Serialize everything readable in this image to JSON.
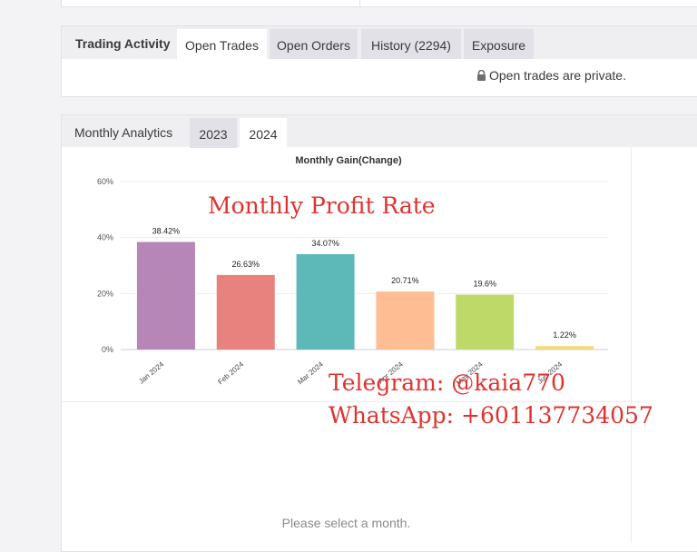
{
  "trading": {
    "title": "Trading Activity",
    "tabs": [
      {
        "label": "Open Trades",
        "active": true
      },
      {
        "label": "Open Orders",
        "active": false
      },
      {
        "label": "History (2294)",
        "active": false
      },
      {
        "label": "Exposure",
        "active": false
      }
    ],
    "private_note": "Open trades are private."
  },
  "analytics": {
    "title": "Monthly Analytics",
    "tabs": [
      {
        "label": "2023",
        "active": false
      },
      {
        "label": "2024",
        "active": true
      }
    ],
    "select_message": "Please select a month."
  },
  "watermarks": {
    "title": "Monthly Profit Rate",
    "telegram": "Telegram: @kaia770",
    "whatsapp": "WhatsApp: +601137734057"
  },
  "chart_data": {
    "type": "bar",
    "title": "Monthly Gain(Change)",
    "xlabel": "",
    "ylabel": "",
    "ylim": [
      0,
      60
    ],
    "yticks": [
      "0%",
      "20%",
      "40%",
      "60%"
    ],
    "grid": true,
    "categories": [
      "Jan 2024",
      "Feb 2024",
      "Mar 2024",
      "Apr 2024",
      "May 2024",
      "Jun 2024"
    ],
    "values": [
      38.42,
      26.63,
      34.07,
      20.71,
      19.6,
      1.22
    ],
    "value_labels": [
      "38.42%",
      "26.63%",
      "34.07%",
      "20.71%",
      "19.6%",
      "1.22%"
    ],
    "colors": [
      "#b586b6",
      "#e8827f",
      "#5db8b8",
      "#ffbd94",
      "#bfd969",
      "#f2db7a"
    ]
  }
}
